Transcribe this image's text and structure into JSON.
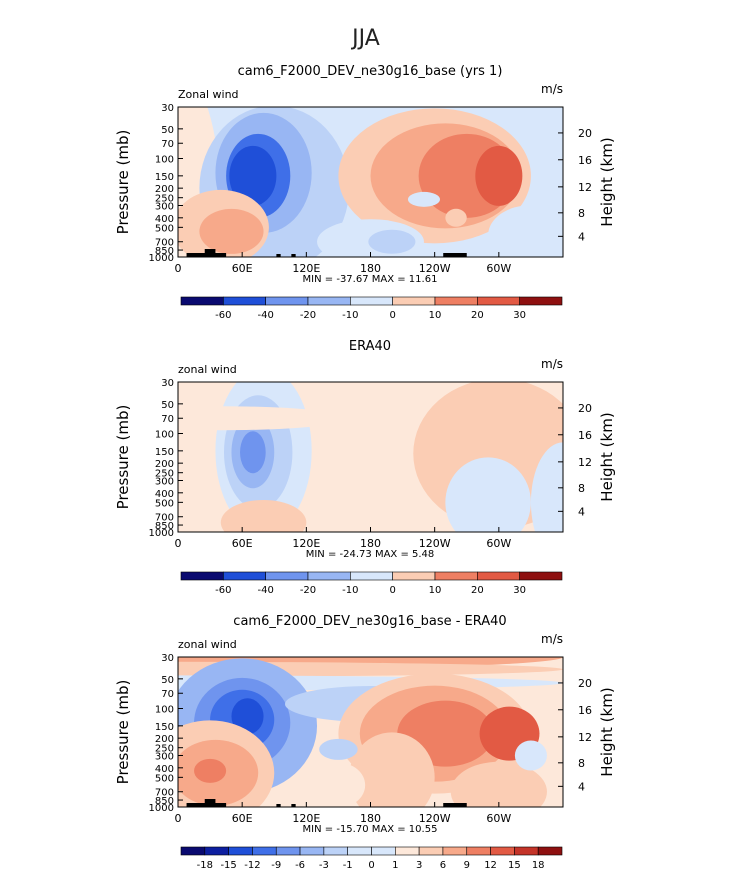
{
  "figure": {
    "season_title": "JJA"
  },
  "y_axis": {
    "left_label": "Pressure (mb)",
    "right_label": "Height (km)",
    "pressure_ticks": [
      "30",
      "50",
      "70",
      "100",
      "150",
      "200",
      "250",
      "300",
      "400",
      "500",
      "700",
      "850",
      "1000"
    ],
    "height_ticks": [
      "20",
      "16",
      "12",
      "8",
      "4"
    ]
  },
  "x_axis": {
    "ticks": [
      "0",
      "60E",
      "120E",
      "180",
      "120W",
      "60W"
    ]
  },
  "panels": [
    {
      "title": "cam6_F2000_DEV_ne30g16_base (yrs 1)",
      "field_label": "Zonal wind",
      "units": "m/s",
      "stats": "MIN = -37.67   MAX =  11.61",
      "colorbar": [
        "-60",
        "-40",
        "-20",
        "-10",
        "0",
        "10",
        "20",
        "30"
      ]
    },
    {
      "title": "ERA40",
      "field_label": "zonal wind",
      "units": "m/s",
      "stats": "MIN = -24.73   MAX =   5.48",
      "colorbar": [
        "-60",
        "-40",
        "-20",
        "-10",
        "0",
        "10",
        "20",
        "30"
      ]
    },
    {
      "title": "cam6_F2000_DEV_ne30g16_base - ERA40",
      "field_label": "zonal wind",
      "units": "m/s",
      "stats": "MIN = -15.70   MAX =  10.55",
      "colorbar": [
        "-18",
        "-15",
        "-12",
        "-9",
        "-6",
        "-3",
        "-1",
        "0",
        "1",
        "3",
        "6",
        "9",
        "12",
        "15",
        "18"
      ]
    }
  ],
  "colors": {
    "colorbar_palette": [
      "#0a0a70",
      "#0d1fa0",
      "#1f4fd8",
      "#3f6fe8",
      "#6f94ee",
      "#98b6f3",
      "#bcd2f7",
      "#d8e7fb",
      "#fde8da",
      "#fbcdb4",
      "#f7a98a",
      "#ee7f63",
      "#e25a44",
      "#c43429",
      "#8e1010"
    ],
    "land_mask": "#000000"
  },
  "chart_data": [
    {
      "type": "heatmap",
      "title": "cam6_F2000_DEV_ne30g16_base (yrs 1)",
      "xlabel": "",
      "ylabel": "Pressure (mb)",
      "y2label": "Height (km)",
      "x_ticks": [
        "0",
        "60E",
        "120E",
        "180",
        "120W",
        "60W"
      ],
      "xlim": [
        0,
        360
      ],
      "ylim_pressure": [
        1000,
        30
      ],
      "y_scale": "log",
      "min": -37.67,
      "max": 11.61,
      "contour_levels": [
        -60,
        -40,
        -20,
        -10,
        0,
        10,
        20,
        30
      ]
    },
    {
      "type": "heatmap",
      "title": "ERA40",
      "xlabel": "",
      "ylabel": "Pressure (mb)",
      "y2label": "Height (km)",
      "x_ticks": [
        "0",
        "60E",
        "120E",
        "180",
        "120W",
        "60W"
      ],
      "xlim": [
        0,
        360
      ],
      "ylim_pressure": [
        1000,
        30
      ],
      "y_scale": "log",
      "min": -24.73,
      "max": 5.48,
      "contour_levels": [
        -60,
        -40,
        -20,
        -10,
        0,
        10,
        20,
        30
      ]
    },
    {
      "type": "heatmap",
      "title": "cam6_F2000_DEV_ne30g16_base - ERA40",
      "xlabel": "",
      "ylabel": "Pressure (mb)",
      "y2label": "Height (km)",
      "x_ticks": [
        "0",
        "60E",
        "120E",
        "180",
        "120W",
        "60W"
      ],
      "xlim": [
        0,
        360
      ],
      "ylim_pressure": [
        1000,
        30
      ],
      "y_scale": "log",
      "min": -15.7,
      "max": 10.55,
      "contour_levels": [
        -18,
        -15,
        -12,
        -9,
        -6,
        -3,
        -1,
        0,
        1,
        3,
        6,
        9,
        12,
        15,
        18
      ]
    }
  ]
}
